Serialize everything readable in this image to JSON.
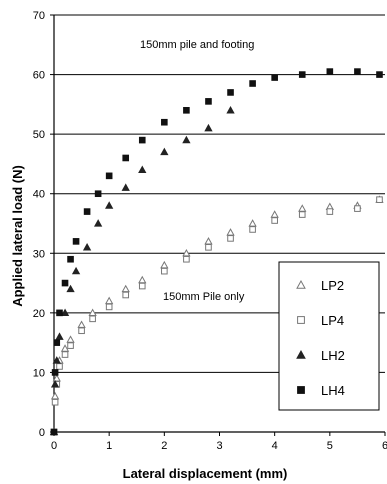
{
  "chart_data": {
    "type": "scatter",
    "title": "",
    "xlabel": "Lateral displacement (mm)",
    "ylabel": "Applied lateral load (N)",
    "xlim": [
      0,
      6
    ],
    "ylim": [
      0,
      70
    ],
    "x_ticks": [
      "0",
      "1",
      "2",
      "3",
      "4",
      "5",
      "6"
    ],
    "y_ticks": [
      "0",
      "10",
      "20",
      "30",
      "40",
      "50",
      "60",
      "70"
    ],
    "grid": "horizontal",
    "legend_position": "right",
    "annotations": [
      {
        "text": "150mm pile and footing"
      },
      {
        "text": "150mm Pile only"
      }
    ],
    "series": [
      {
        "name": "LP2",
        "marker": "open-triangle",
        "color": "#777777",
        "x": [
          0,
          0.02,
          0.05,
          0.1,
          0.2,
          0.3,
          0.5,
          0.7,
          1.0,
          1.3,
          1.6,
          2.0,
          2.4,
          2.8,
          3.2,
          3.6,
          4.0,
          4.5,
          5.0,
          5.5,
          5.9
        ],
        "y": [
          0,
          6,
          9,
          12,
          14,
          15.5,
          18,
          20,
          22,
          24,
          25.5,
          28,
          30,
          32,
          33.5,
          35,
          36.5,
          37.5,
          37.8,
          38,
          39
        ]
      },
      {
        "name": "LP4",
        "marker": "open-square",
        "color": "#777777",
        "x": [
          0,
          0.02,
          0.05,
          0.1,
          0.2,
          0.3,
          0.5,
          0.7,
          1.0,
          1.3,
          1.6,
          2.0,
          2.4,
          2.8,
          3.2,
          3.6,
          4.0,
          4.5,
          5.0,
          5.5,
          5.9
        ],
        "y": [
          0,
          5,
          8,
          11,
          13,
          14.5,
          17,
          19,
          21,
          23,
          24.5,
          27,
          29,
          31,
          32.5,
          34,
          35.5,
          36.5,
          37,
          37.5,
          39
        ]
      },
      {
        "name": "LH2",
        "marker": "filled-triangle",
        "color": "#222222",
        "x": [
          0,
          0.02,
          0.05,
          0.1,
          0.2,
          0.3,
          0.4,
          0.6,
          0.8,
          1.0,
          1.3,
          1.6,
          2.0,
          2.4,
          2.8,
          3.2
        ],
        "y": [
          0,
          8,
          12,
          16,
          20,
          24,
          27,
          31,
          35,
          38,
          41,
          44,
          47,
          49,
          51,
          54
        ]
      },
      {
        "name": "LH4",
        "marker": "filled-square",
        "color": "#111111",
        "x": [
          0,
          0.02,
          0.05,
          0.1,
          0.2,
          0.3,
          0.4,
          0.6,
          0.8,
          1.0,
          1.3,
          1.6,
          2.0,
          2.4,
          2.8,
          3.2,
          3.6,
          4.0,
          4.5,
          5.0,
          5.5,
          5.9
        ],
        "y": [
          0,
          10,
          15,
          20,
          25,
          29,
          32,
          37,
          40,
          43,
          46,
          49,
          52,
          54,
          55.5,
          57,
          58.5,
          59.5,
          60,
          60.5,
          60.5,
          60
        ]
      }
    ]
  }
}
